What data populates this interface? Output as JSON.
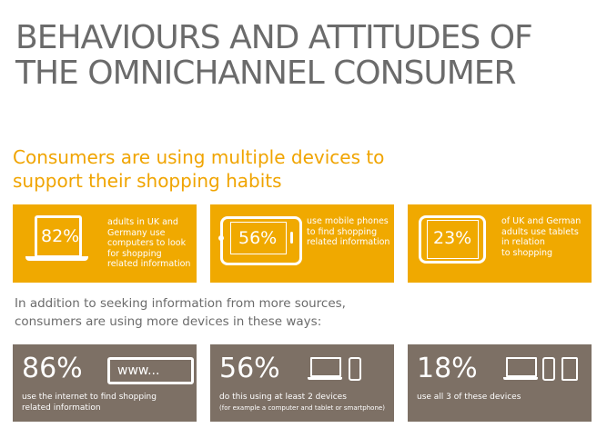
{
  "title": {
    "line1": "BEHAVIOURS AND ATTITUDES OF",
    "line2": "THE OMNICHANNEL CONSUMER"
  },
  "subtitle": {
    "line1": "Consumers are using multiple devices to",
    "line2": "support their shopping habits"
  },
  "device_stats": [
    {
      "percent": "82%",
      "icon": "laptop-icon",
      "lines": [
        "adults in UK and",
        "Germany use",
        "computers to look",
        "for shopping",
        "related information"
      ]
    },
    {
      "percent": "56%",
      "icon": "smartphone-icon",
      "lines": [
        "use mobile phones",
        "to find shopping",
        "related information"
      ]
    },
    {
      "percent": "23%",
      "icon": "tablet-icon",
      "lines": [
        "of UK and German",
        "adults use tablets",
        "in relation",
        "to shopping"
      ]
    }
  ],
  "intro": {
    "line1": "In addition to seeking information from more sources,",
    "line2": "consumers are using more devices in these ways:"
  },
  "usage_stats": [
    {
      "percent": "86%",
      "url_text": "www...",
      "lines": [
        "use the internet to find shopping",
        "related information"
      ]
    },
    {
      "percent": "56%",
      "lines": [
        "do this using at least 2 devices"
      ],
      "note": "(for example a computer and tablet or smartphone)"
    },
    {
      "percent": "18%",
      "lines": [
        "use all 3 of these devices"
      ]
    }
  ],
  "colors": {
    "accent_yellow": "#f0a900",
    "box_brown": "#7d7065",
    "title_gray": "#6b6b6b"
  }
}
